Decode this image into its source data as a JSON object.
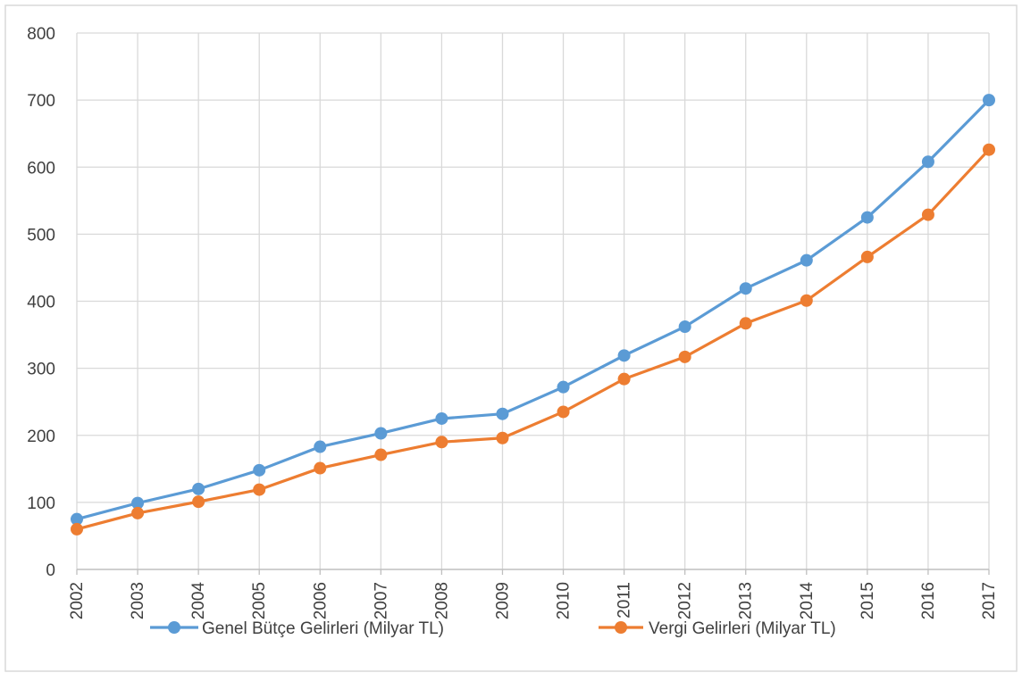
{
  "chart_data": {
    "type": "line",
    "title": "",
    "xlabel": "",
    "ylabel": "",
    "categories": [
      "2002",
      "2003",
      "2004",
      "2005",
      "2006",
      "2007",
      "2008",
      "2009",
      "2010",
      "2011",
      "2012",
      "2013",
      "2014",
      "2015",
      "2016",
      "2017"
    ],
    "ylim": [
      0,
      800
    ],
    "yticks": [
      "0",
      "100",
      "200",
      "300",
      "400",
      "500",
      "600",
      "700",
      "800"
    ],
    "grid": true,
    "legend_position": "bottom",
    "series": [
      {
        "name": "Genel Bütçe Gelirleri (Milyar TL)",
        "color": "#5B9BD5",
        "values": [
          75,
          99,
          120,
          148,
          183,
          203,
          225,
          232,
          272,
          319,
          362,
          419,
          461,
          525,
          608,
          700
        ]
      },
      {
        "name": "Vergi Gelirleri (Milyar TL)",
        "color": "#ED7D31",
        "values": [
          60,
          84,
          101,
          119,
          151,
          171,
          190,
          196,
          235,
          284,
          317,
          367,
          401,
          466,
          529,
          626
        ]
      }
    ]
  }
}
